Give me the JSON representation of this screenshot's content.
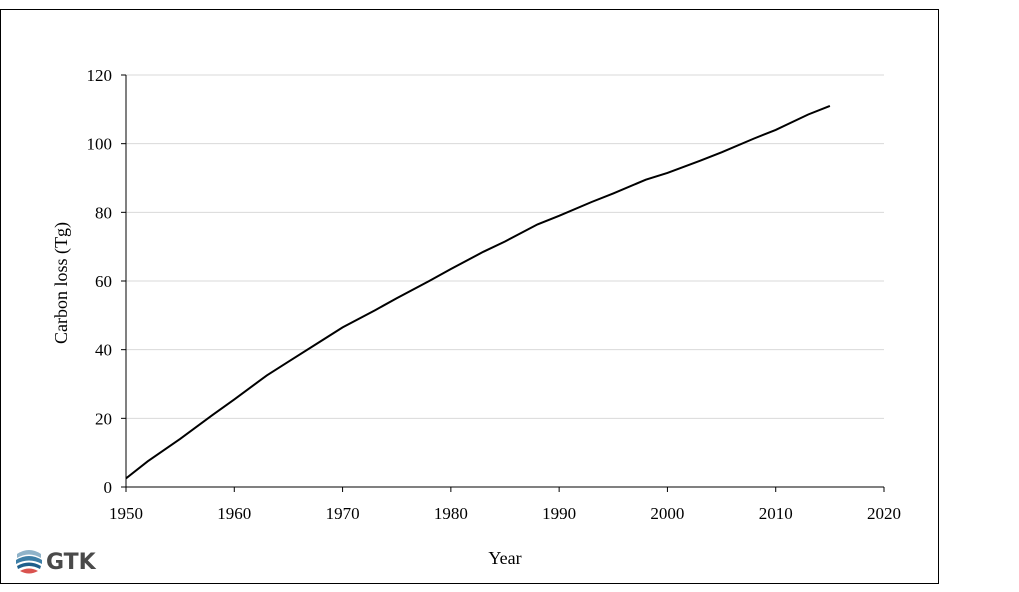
{
  "chart_data": {
    "type": "line",
    "title": "",
    "xlabel": "Year",
    "ylabel": "Carbon loss (Tg)",
    "xlim": [
      1950,
      2020
    ],
    "ylim": [
      0,
      120
    ],
    "xticks": [
      1950,
      1960,
      1970,
      1980,
      1990,
      2000,
      2010,
      2020
    ],
    "yticks": [
      0,
      20,
      40,
      60,
      80,
      100,
      120
    ],
    "grid": "horizontal",
    "legend": "none",
    "series": [
      {
        "x": [
          1950,
          1952,
          1955,
          1958,
          1960,
          1963,
          1965,
          1968,
          1970,
          1973,
          1975,
          1978,
          1980,
          1983,
          1985,
          1988,
          1990,
          1993,
          1995,
          1998,
          2000,
          2003,
          2005,
          2008,
          2010,
          2013,
          2015
        ],
        "y": [
          2.5,
          7.5,
          14,
          21,
          25.5,
          32.5,
          36.5,
          42.5,
          46.5,
          51.5,
          55,
          60,
          63.5,
          68.5,
          71.5,
          76.5,
          79,
          83,
          85.5,
          89.5,
          91.5,
          95,
          97.5,
          101.5,
          104,
          108.5,
          111
        ],
        "color": "#000000"
      }
    ]
  },
  "branding": {
    "logo_text": "GTK"
  }
}
